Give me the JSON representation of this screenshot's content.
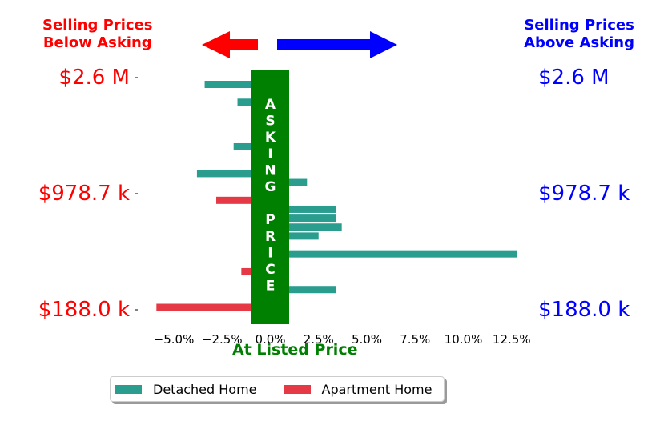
{
  "header": {
    "left_line1": "Selling Prices",
    "left_line2": "Below Asking",
    "right_line1": "Selling Prices",
    "right_line2": "Above Asking"
  },
  "price_labels": [
    "$2.6 M",
    "$978.7 k",
    "$188.0 k"
  ],
  "asking_letters": [
    "A",
    "S",
    "K",
    "I",
    "N",
    "G",
    "",
    "P",
    "R",
    "I",
    "C",
    "E"
  ],
  "xlabel": "At Listed Price",
  "legend": {
    "detached": "Detached Home",
    "apartment": "Apartment Home"
  },
  "colors": {
    "detached": "#2a9d8f",
    "apartment": "#e63946",
    "asking_band": "#008000",
    "below": "#ff0000",
    "above": "#0000ff",
    "left_arrow": "#ff0000",
    "right_arrow": "#0000ff"
  },
  "chart_data": {
    "type": "bar",
    "orientation": "horizontal",
    "xlabel": "At Listed Price",
    "x_ticks": [
      "−5.0%",
      "−2.5%",
      "0.0%",
      "2.5%",
      "5.0%",
      "7.5%",
      "10.0%",
      "12.5%"
    ],
    "x_tick_values": [
      -5.0,
      -2.5,
      0.0,
      2.5,
      5.0,
      7.5,
      10.0,
      12.5
    ],
    "xlim": [
      -6.2,
      13.4
    ],
    "y_ticks": [
      "$2.6 M",
      "$978.7 k",
      "$188.0 k"
    ],
    "bars": [
      {
        "type": "detached",
        "value": -3.4
      },
      {
        "type": "detached",
        "value": 0.6
      },
      {
        "type": "detached",
        "value": -1.7
      },
      {
        "type": "apartment",
        "value": 0.4
      },
      {
        "type": "detached",
        "value": 0.5
      },
      {
        "type": "detached",
        "value": 0.4
      },
      {
        "type": "detached",
        "value": 0.5
      },
      {
        "type": "detached",
        "value": -1.9
      },
      {
        "type": "detached",
        "value": 0.6
      },
      {
        "type": "detached",
        "value": 0.5
      },
      {
        "type": "detached",
        "value": -3.8
      },
      {
        "type": "detached",
        "value": 1.9
      },
      {
        "type": "detached",
        "value": 0.5
      },
      {
        "type": "apartment",
        "value": -2.8
      },
      {
        "type": "detached",
        "value": 3.4
      },
      {
        "type": "detached",
        "value": 3.4
      },
      {
        "type": "detached",
        "value": 3.7
      },
      {
        "type": "detached",
        "value": 2.5
      },
      {
        "type": "detached",
        "value": 0.4
      },
      {
        "type": "detached",
        "value": 12.8
      },
      {
        "type": "apartment",
        "value": 0.5
      },
      {
        "type": "apartment",
        "value": -1.5
      },
      {
        "type": "apartment",
        "value": 0.5
      },
      {
        "type": "detached",
        "value": 3.4
      },
      {
        "type": "apartment",
        "value": 0.5
      },
      {
        "type": "apartment",
        "value": -5.9
      }
    ]
  }
}
